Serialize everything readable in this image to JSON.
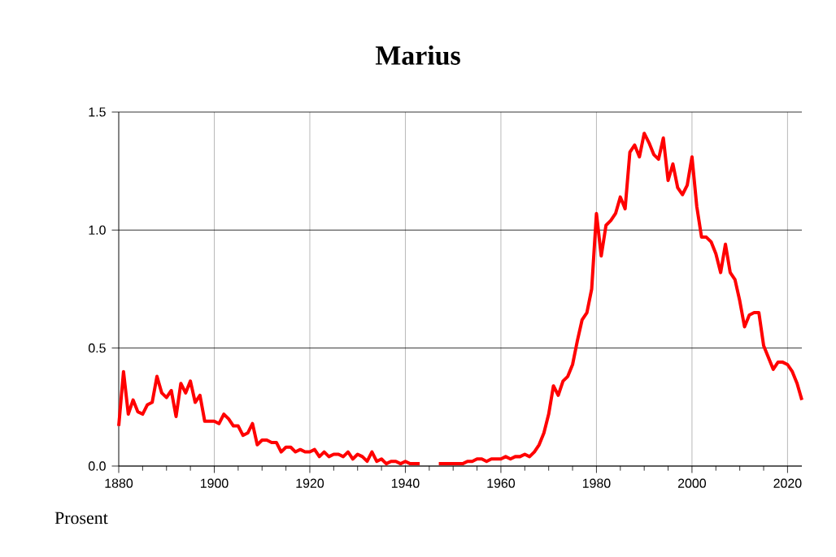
{
  "chart_data": {
    "type": "line",
    "title": "Marius",
    "ylabel": "Prosent",
    "x": [
      1880,
      1881,
      1882,
      1883,
      1884,
      1885,
      1886,
      1887,
      1888,
      1889,
      1890,
      1891,
      1892,
      1893,
      1894,
      1895,
      1896,
      1897,
      1898,
      1899,
      1900,
      1901,
      1902,
      1903,
      1904,
      1905,
      1906,
      1907,
      1908,
      1909,
      1910,
      1911,
      1912,
      1913,
      1914,
      1915,
      1916,
      1917,
      1918,
      1919,
      1920,
      1921,
      1922,
      1923,
      1924,
      1925,
      1926,
      1927,
      1928,
      1929,
      1930,
      1931,
      1932,
      1933,
      1934,
      1935,
      1936,
      1937,
      1938,
      1939,
      1940,
      1941,
      1942,
      1943,
      1944,
      1945,
      1946,
      1947,
      1948,
      1949,
      1950,
      1951,
      1952,
      1953,
      1954,
      1955,
      1956,
      1957,
      1958,
      1959,
      1960,
      1961,
      1962,
      1963,
      1964,
      1965,
      1966,
      1967,
      1968,
      1969,
      1970,
      1971,
      1972,
      1973,
      1974,
      1975,
      1976,
      1977,
      1978,
      1979,
      1980,
      1981,
      1982,
      1983,
      1984,
      1985,
      1986,
      1987,
      1988,
      1989,
      1990,
      1991,
      1992,
      1993,
      1994,
      1995,
      1996,
      1997,
      1998,
      1999,
      2000,
      2001,
      2002,
      2003,
      2004,
      2005,
      2006,
      2007,
      2008,
      2009,
      2010,
      2011,
      2012,
      2013,
      2014,
      2015,
      2016,
      2017,
      2018,
      2019,
      2020,
      2021,
      2022,
      2023
    ],
    "series": [
      {
        "color": "#ff0000",
        "values": [
          0.17,
          0.4,
          0.22,
          0.28,
          0.23,
          0.22,
          0.26,
          0.27,
          0.38,
          0.31,
          0.29,
          0.32,
          0.21,
          0.35,
          0.31,
          0.36,
          0.27,
          0.3,
          0.19,
          0.19,
          0.19,
          0.18,
          0.22,
          0.2,
          0.17,
          0.17,
          0.13,
          0.14,
          0.18,
          0.09,
          0.11,
          0.11,
          0.1,
          0.1,
          0.06,
          0.08,
          0.08,
          0.06,
          0.07,
          0.06,
          0.06,
          0.07,
          0.04,
          0.06,
          0.04,
          0.05,
          0.05,
          0.04,
          0.06,
          0.03,
          0.05,
          0.04,
          0.02,
          0.06,
          0.02,
          0.03,
          0.01,
          0.02,
          0.02,
          0.01,
          0.02,
          0.01,
          0.01,
          0.01,
          null,
          null,
          null,
          0.01,
          0.01,
          0.01,
          0.01,
          0.01,
          0.01,
          0.02,
          0.02,
          0.03,
          0.03,
          0.02,
          0.03,
          0.03,
          0.03,
          0.04,
          0.03,
          0.04,
          0.04,
          0.05,
          0.04,
          0.06,
          0.09,
          0.14,
          0.22,
          0.34,
          0.3,
          0.36,
          0.38,
          0.43,
          0.53,
          0.62,
          0.65,
          0.75,
          1.07,
          0.89,
          1.02,
          1.04,
          1.07,
          1.14,
          1.09,
          1.33,
          1.36,
          1.31,
          1.41,
          1.37,
          1.32,
          1.3,
          1.39,
          1.21,
          1.28,
          1.18,
          1.15,
          1.19,
          1.31,
          1.1,
          0.97,
          0.97,
          0.95,
          0.9,
          0.82,
          0.94,
          0.82,
          0.79,
          0.7,
          0.59,
          0.64,
          0.65,
          0.65,
          0.51,
          0.46,
          0.41,
          0.44,
          0.44,
          0.43,
          0.4,
          0.35,
          0.28
        ]
      }
    ],
    "xlim": [
      1880,
      2023
    ],
    "ylim": [
      0,
      1.5
    ],
    "xticks": [
      1880,
      1900,
      1920,
      1940,
      1960,
      1980,
      2000,
      2020
    ],
    "yticks": [
      {
        "value": 0,
        "label": "0.0"
      },
      {
        "value": 0.5,
        "label": "0.5"
      },
      {
        "value": 1,
        "label": "1.0"
      },
      {
        "value": 1.5,
        "label": "1.5"
      }
    ],
    "grid": true,
    "line_style": "solid",
    "marker": "none"
  }
}
